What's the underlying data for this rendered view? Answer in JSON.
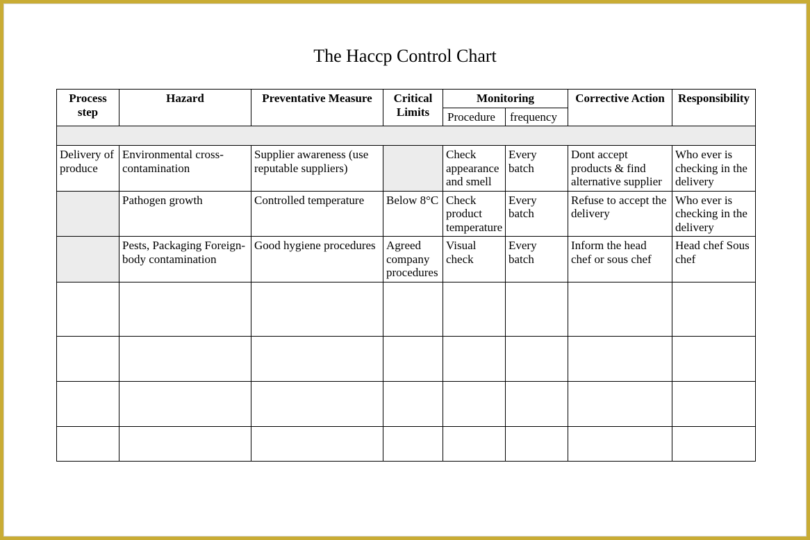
{
  "title": "The Haccp Control Chart",
  "colors": {
    "frame_border": "#c9ac34",
    "inner_border": "#d9d9d9",
    "cell_border": "#000000",
    "shaded_bg": "#ececec",
    "background": "#ffffff",
    "text": "#000000"
  },
  "typography": {
    "font_family": "Times New Roman",
    "title_fontsize": 26,
    "cell_fontsize": 17
  },
  "table": {
    "headers": {
      "process_step": "Process step",
      "hazard": "Hazard",
      "preventative_measure": "Preventative Measure",
      "critical_limits": "Critical Limits",
      "monitoring": "Monitoring",
      "monitoring_procedure": "Procedure",
      "monitoring_frequency": "frequency",
      "corrective_action": "Corrective Action",
      "responsibility": "Responsibility"
    },
    "rows": [
      {
        "process_step": "Delivery of produce",
        "process_step_shaded": false,
        "hazard": "Environmental cross-contamination",
        "preventative_measure": "Supplier awareness (use reputable suppliers)",
        "critical_limits": "",
        "critical_limits_shaded": true,
        "monitoring_procedure": "Check appearance and smell",
        "monitoring_frequency": "Every batch",
        "corrective_action": "Dont accept products & find alternative supplier",
        "responsibility": "Who ever is checking in the delivery"
      },
      {
        "process_step": "",
        "process_step_shaded": true,
        "hazard": "Pathogen growth",
        "preventative_measure": "Controlled temperature",
        "critical_limits": "Below 8°C",
        "critical_limits_shaded": false,
        "monitoring_procedure": "Check product temperature",
        "monitoring_frequency": "Every batch",
        "corrective_action": "Refuse to accept the delivery",
        "responsibility": "Who ever is checking in the delivery"
      },
      {
        "process_step": "",
        "process_step_shaded": true,
        "hazard": "Pests, Packaging Foreign-body contamination",
        "preventative_measure": "Good hygiene procedures",
        "critical_limits": "Agreed company procedures",
        "critical_limits_shaded": false,
        "monitoring_procedure": "Visual check",
        "monitoring_frequency": "Every batch",
        "corrective_action": "Inform the head chef or sous chef",
        "responsibility": "Head chef Sous chef"
      }
    ],
    "empty_row_count": 4
  }
}
